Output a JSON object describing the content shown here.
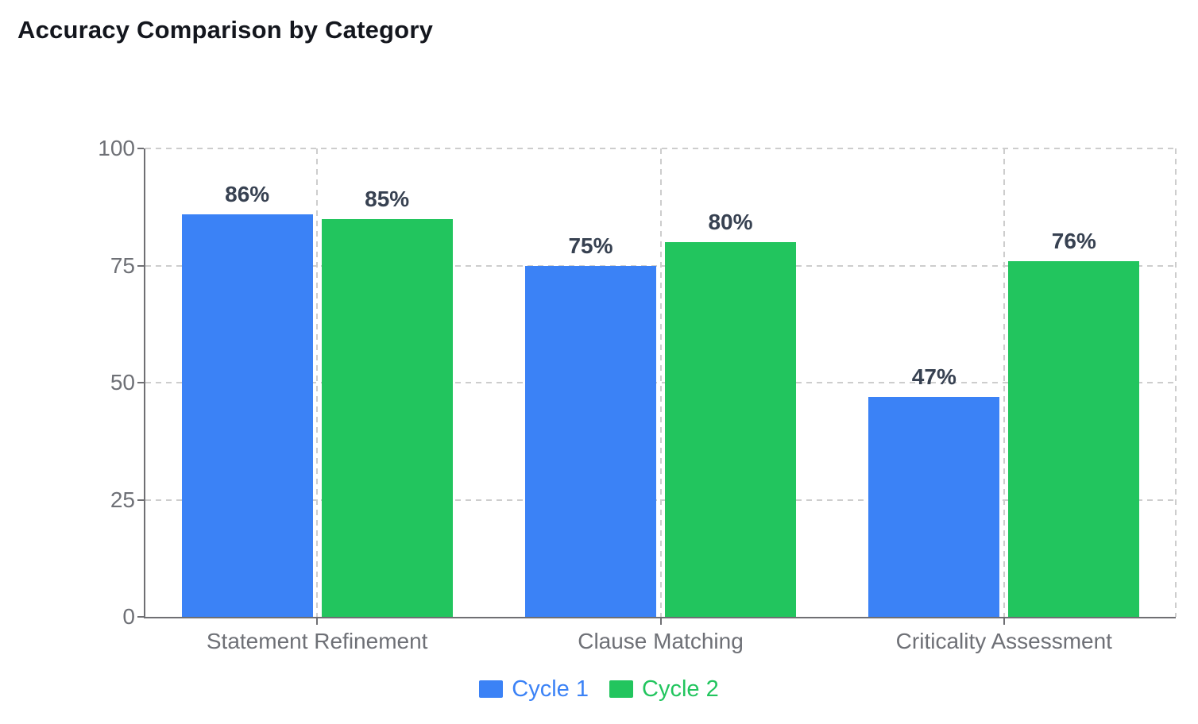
{
  "title": "Accuracy Comparison by Category",
  "colors": {
    "cycle1": "#3b82f6",
    "cycle2": "#22c55e",
    "grid": "#cdcdcd",
    "axis": "#6f6f73",
    "tick_label": "#6e7076",
    "value_label": "#374151",
    "title": "#13161d",
    "background": "#ffffff"
  },
  "chart_data": {
    "type": "bar",
    "title": "Accuracy Comparison by Category",
    "categories": [
      "Statement Refinement",
      "Clause Matching",
      "Criticality Assessment"
    ],
    "series": [
      {
        "name": "Cycle 1",
        "color": "#3b82f6",
        "values": [
          86,
          75,
          47
        ],
        "labels": [
          "86%",
          "75%",
          "47%"
        ]
      },
      {
        "name": "Cycle 2",
        "color": "#22c55e",
        "values": [
          85,
          80,
          76
        ],
        "labels": [
          "85%",
          "80%",
          "76%"
        ]
      }
    ],
    "xlabel": "",
    "ylabel": "",
    "ylim": [
      0,
      100
    ],
    "yticks": [
      0,
      25,
      50,
      75,
      100
    ],
    "ytick_labels": [
      "0",
      "25",
      "50",
      "75",
      "100"
    ],
    "grid": true,
    "grid_style": "dashed",
    "legend_position": "bottom",
    "value_labels_shown": true
  },
  "legend": {
    "items": [
      {
        "label": "Cycle 1",
        "color": "#3b82f6"
      },
      {
        "label": "Cycle 2",
        "color": "#22c55e"
      }
    ]
  }
}
